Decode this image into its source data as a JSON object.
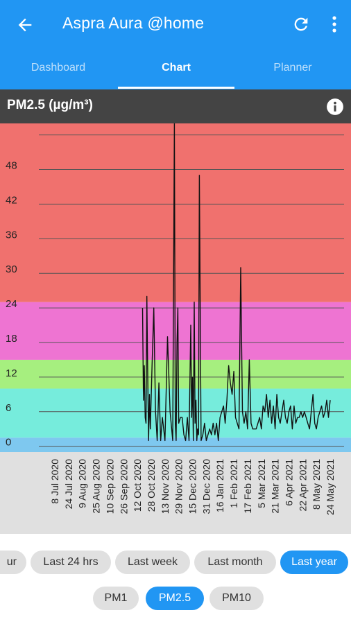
{
  "appbar": {
    "title": "Aspra Aura @home",
    "back_icon": "arrow-back-icon",
    "refresh_icon": "refresh-icon",
    "more_icon": "more-vert-icon"
  },
  "tabs": [
    {
      "label": "Dashboard",
      "active": false
    },
    {
      "label": "Chart",
      "active": true
    },
    {
      "label": "Planner",
      "active": false
    }
  ],
  "chart_header": {
    "title": "PM2.5  (µg/m³)",
    "info_icon": "info-icon"
  },
  "colors": {
    "primary": "#2196f3",
    "band_red": "#f0716e",
    "band_magenta": "#ee74d2",
    "band_green": "#a6ef7f",
    "band_cyan": "#76ecdc",
    "band_blue": "#7ec8ef",
    "axis_bg": "#e0e0e0"
  },
  "chart_data": {
    "type": "line",
    "title": "PM2.5  (µg/m³)",
    "xlabel": "",
    "ylabel": "",
    "ylim": [
      -1,
      56
    ],
    "yticks": [
      0,
      6,
      12,
      18,
      24,
      30,
      36,
      42,
      48
    ],
    "grid": true,
    "bands": [
      {
        "from": 25,
        "to": 56,
        "color": "#f0716e"
      },
      {
        "from": 15,
        "to": 25,
        "color": "#ee74d2"
      },
      {
        "from": 10,
        "to": 15,
        "color": "#a6ef7f"
      },
      {
        "from": 1.5,
        "to": 10,
        "color": "#76ecdc"
      },
      {
        "from": -1,
        "to": 1.5,
        "color": "#7ec8ef"
      }
    ],
    "x_tick_labels": [
      "8 Jul 2020",
      "24 Jul 2020",
      "9 Aug 2020",
      "25 Aug 2020",
      "10 Sep 2020",
      "26 Sep 2020",
      "12 Oct 2020",
      "28 Oct 2020",
      "13 Nov 2020",
      "29 Nov 2020",
      "15 Dec 2020",
      "31 Dec 2020",
      "16 Jan 2021",
      "1 Feb 2021",
      "17 Feb 2021",
      "5 Mar 2021",
      "21 Mar 2021",
      "6 Apr 2021",
      "22 Apr 2021",
      "8 May 2021",
      "24 May 2021"
    ],
    "x_tick_days": [
      0,
      16,
      32,
      48,
      64,
      80,
      96,
      112,
      128,
      144,
      160,
      176,
      192,
      208,
      224,
      240,
      256,
      272,
      288,
      304,
      320
    ],
    "series": [
      {
        "x": [
          102,
          103,
          104,
          105,
          106,
          107,
          108,
          109,
          110,
          111,
          113,
          115,
          117,
          119,
          121,
          123,
          125,
          128,
          131,
          134,
          137,
          139,
          140,
          141,
          142,
          143,
          144,
          146,
          148,
          150,
          152,
          154,
          156,
          158,
          159,
          160,
          161,
          162,
          163,
          164,
          165,
          166,
          167,
          168,
          170,
          172,
          174,
          176,
          178,
          180,
          182,
          184,
          186,
          188,
          190,
          192,
          194,
          196,
          198,
          200,
          202,
          204,
          206,
          208,
          210,
          212,
          214,
          216,
          218,
          220,
          222,
          224,
          226,
          228,
          230,
          232,
          234,
          236,
          238,
          240,
          242,
          244,
          246,
          248,
          250,
          252,
          254,
          256,
          258,
          260,
          262,
          264,
          266,
          268,
          270,
          272,
          274,
          276,
          278,
          280,
          282,
          284,
          286,
          288,
          290,
          292,
          294,
          296,
          298,
          300,
          302,
          304,
          306,
          308,
          310,
          312,
          314,
          316,
          318,
          320
        ],
        "y": [
          24,
          8,
          14,
          5,
          4,
          26,
          12,
          1,
          9,
          3,
          14,
          24,
          6,
          1,
          11,
          1,
          5,
          1,
          19,
          6,
          1,
          56,
          4,
          1,
          18,
          24,
          4,
          5,
          5,
          2,
          1,
          5,
          1,
          21,
          5,
          12,
          1,
          25,
          4,
          8,
          1,
          3,
          2,
          47,
          1,
          2,
          4,
          1,
          2,
          3,
          2,
          4,
          2,
          4,
          1,
          5,
          6,
          7,
          4,
          8,
          14,
          11,
          9,
          13,
          5,
          4,
          3,
          31,
          6,
          4,
          6,
          3,
          15,
          4,
          3,
          3,
          3,
          4,
          5,
          3,
          7,
          6,
          9,
          5,
          8,
          4,
          7,
          3,
          9,
          5,
          4,
          6,
          8,
          5,
          4,
          6,
          7,
          3,
          7,
          4,
          5,
          5,
          6,
          5,
          6,
          5,
          4,
          3,
          6,
          9,
          4,
          3,
          5,
          6,
          7,
          5,
          6,
          8,
          5,
          8
        ]
      }
    ]
  },
  "time_filters": [
    {
      "label": "ur",
      "selected": false
    },
    {
      "label": "Last 24 hrs",
      "selected": false
    },
    {
      "label": "Last week",
      "selected": false
    },
    {
      "label": "Last month",
      "selected": false
    },
    {
      "label": "Last year",
      "selected": true
    }
  ],
  "pm_filters": [
    {
      "label": "PM1",
      "selected": false
    },
    {
      "label": "PM2.5",
      "selected": true
    },
    {
      "label": "PM10",
      "selected": false
    }
  ]
}
